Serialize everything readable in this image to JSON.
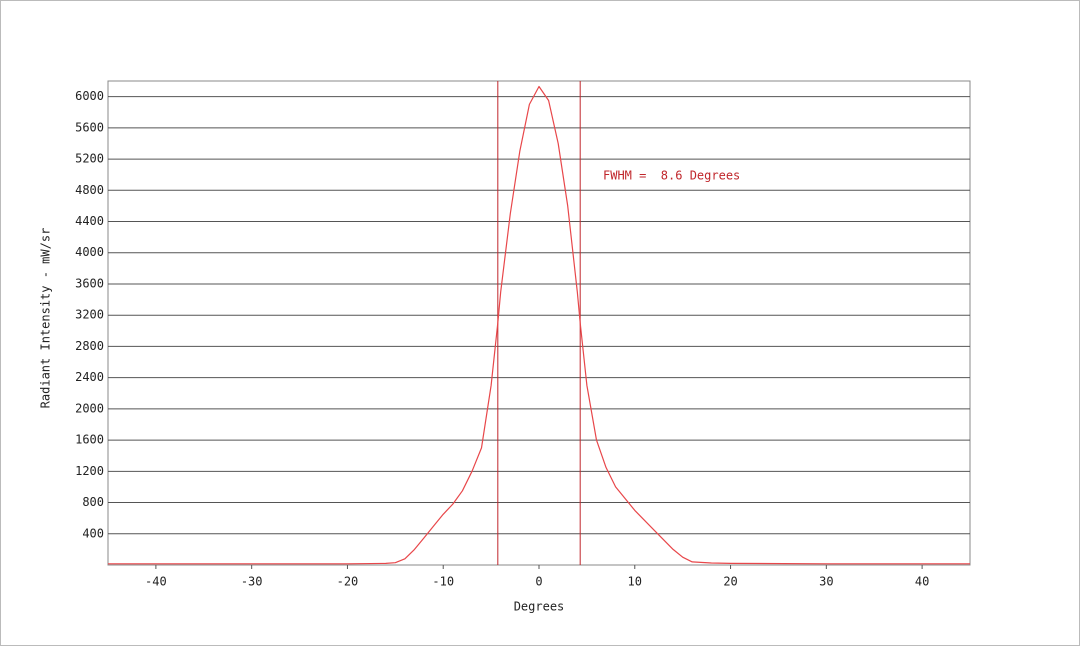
{
  "chart_data": {
    "type": "line",
    "x_label": "Degrees",
    "y_label": "Radiant Intensity - mW/sr",
    "annotation": "FWHM =  8.6 Degrees",
    "x": [
      -45,
      -40,
      -30,
      -20,
      -16,
      -15,
      -14,
      -13,
      -12,
      -11,
      -10,
      -9,
      -8,
      -7,
      -6,
      -5,
      -4.3,
      -4,
      -3,
      -2,
      -1,
      0,
      1,
      2,
      3,
      4,
      4.3,
      5,
      6,
      7,
      8,
      10,
      12,
      14,
      15,
      16,
      18,
      20,
      30,
      40,
      45
    ],
    "series": [
      {
        "name": "Radiant Intensity",
        "color": "#e8474a",
        "values": [
          15,
          15,
          15,
          15,
          20,
          30,
          80,
          200,
          350,
          500,
          650,
          780,
          950,
          1200,
          1500,
          2300,
          3100,
          3500,
          4500,
          5300,
          5900,
          6130,
          5950,
          5400,
          4600,
          3500,
          3100,
          2300,
          1600,
          1250,
          1000,
          700,
          450,
          200,
          100,
          40,
          25,
          20,
          15,
          15,
          15
        ]
      }
    ],
    "vlines": [
      -4.3,
      4.3
    ],
    "vline_color": "#c0262b",
    "xlim": [
      -45,
      45
    ],
    "xticks": [
      -40,
      -30,
      -20,
      -10,
      0,
      10,
      20,
      30,
      40
    ],
    "ylim": [
      0,
      6200
    ],
    "yticks": [
      400,
      800,
      1200,
      1600,
      2000,
      2400,
      2800,
      3200,
      3600,
      4000,
      4400,
      4800,
      5200,
      5600,
      6000
    ],
    "grid": true
  }
}
